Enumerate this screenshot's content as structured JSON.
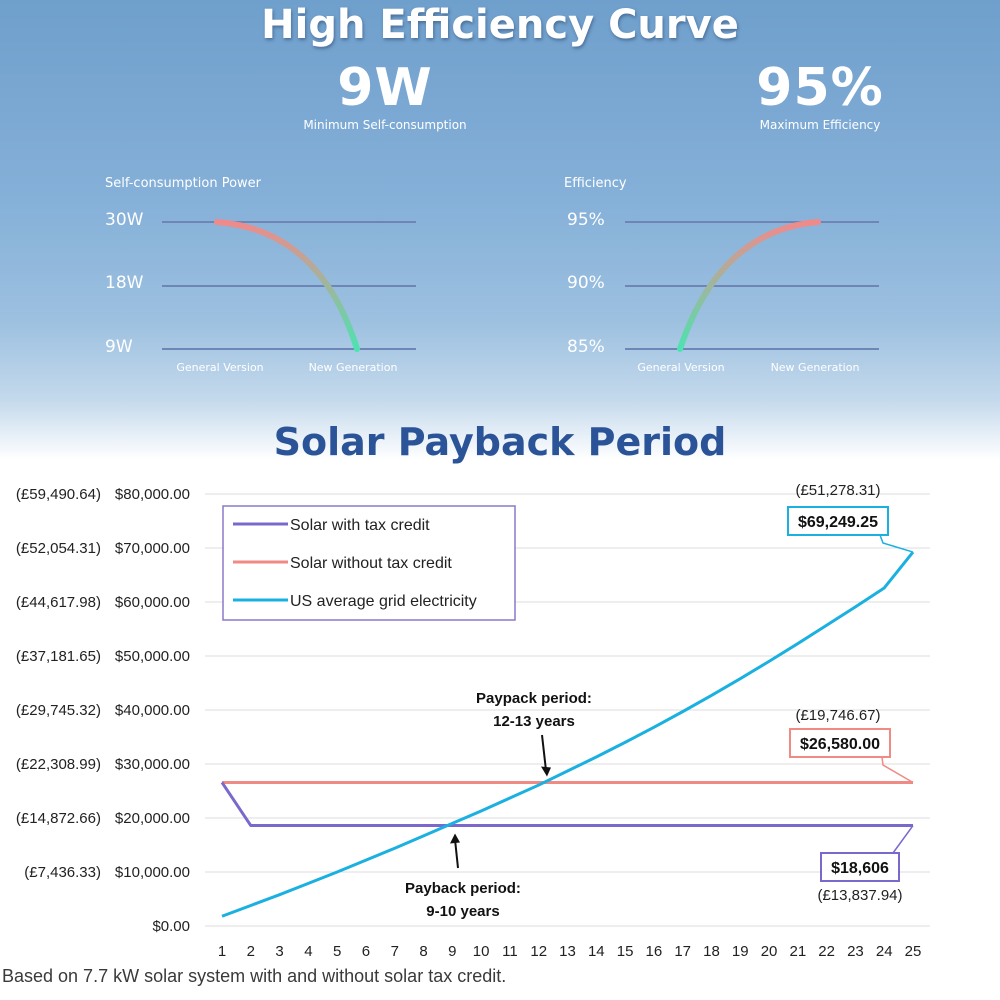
{
  "header": {
    "title": "High Efficiency Curve",
    "stat_left": {
      "value": "9W",
      "label": "Minimum Self-consumption"
    },
    "stat_right": {
      "value": "95%",
      "label": "Maximum Efficiency"
    }
  },
  "payback": {
    "title": "Solar Payback Period",
    "footnote": "Based on 7.7 kW solar system with and without solar tax credit."
  },
  "colors": {
    "solar_with": "#7b68cc",
    "solar_without": "#ef8a84",
    "grid": "#1ab0e0",
    "curve_hot": "#f08a8a",
    "curve_cool": "#4ee2b0"
  },
  "chart_data": [
    {
      "type": "line",
      "title": "Self-consumption Power",
      "y_ticks": [
        "30W",
        "18W",
        "9W"
      ],
      "x_labels": [
        "General Version",
        "New Generation"
      ],
      "series": [
        {
          "x": [
            "General Version",
            "New Generation"
          ],
          "y": [
            30,
            9
          ]
        }
      ]
    },
    {
      "type": "line",
      "title": "Efficiency",
      "y_ticks": [
        "95%",
        "90%",
        "85%"
      ],
      "x_labels": [
        "General Version",
        "New Generation"
      ],
      "series": [
        {
          "x": [
            "General Version",
            "New Generation"
          ],
          "y": [
            85,
            95
          ]
        }
      ]
    },
    {
      "type": "line",
      "x": [
        1,
        2,
        3,
        4,
        5,
        6,
        7,
        8,
        9,
        10,
        11,
        12,
        13,
        14,
        15,
        16,
        17,
        18,
        19,
        20,
        21,
        22,
        23,
        24,
        25
      ],
      "ylim": [
        0,
        80000
      ],
      "y_ticks": [
        "$0.00",
        "$10,000.00",
        "$20,000.00",
        "$30,000.00",
        "$40,000.00",
        "$50,000.00",
        "$60,000.00",
        "$70,000.00",
        "$80,000.00"
      ],
      "y_ticks_gbp": [
        "(£7,436.33)",
        "(£14,872.66)",
        "(£22,308.99)",
        "(£29,745.32)",
        "(£37,181.65)",
        "(£44,617.98)",
        "(£52,054.31)",
        "(£59,490.64)"
      ],
      "legend_position": "top-left",
      "series": [
        {
          "name": "Solar with tax credit",
          "values": [
            26580,
            18606,
            18606,
            18606,
            18606,
            18606,
            18606,
            18606,
            18606,
            18606,
            18606,
            18606,
            18606,
            18606,
            18606,
            18606,
            18606,
            18606,
            18606,
            18606,
            18606,
            18606,
            18606,
            18606,
            18606
          ]
        },
        {
          "name": "Solar without tax credit",
          "values": [
            26580,
            26580,
            26580,
            26580,
            26580,
            26580,
            26580,
            26580,
            26580,
            26580,
            26580,
            26580,
            26580,
            26580,
            26580,
            26580,
            26580,
            26580,
            26580,
            26580,
            26580,
            26580,
            26580,
            26580,
            26580
          ]
        },
        {
          "name": "US average grid electricity",
          "values": [
            1800,
            3800,
            5800,
            7900,
            10000,
            12200,
            14400,
            16700,
            19000,
            21300,
            23700,
            26100,
            28700,
            31300,
            34000,
            36800,
            39700,
            42700,
            45800,
            49000,
            52300,
            55700,
            59100,
            62600,
            69249.25
          ]
        }
      ],
      "annotations": [
        {
          "text": "$69,249.25",
          "gbp": "(£51,278.31)",
          "x": 25,
          "y": 69249.25
        },
        {
          "text": "$26,580.00",
          "gbp": "(£19,746.67)",
          "x": 25,
          "y": 26580
        },
        {
          "text": "$18,606",
          "gbp": "(£13,837.94)",
          "x": 25,
          "y": 18606
        },
        {
          "line1": "Paypack period:",
          "line2": "12-13 years",
          "x": 12.2,
          "y": 26580
        },
        {
          "line1": "Payback period:",
          "line2": "9-10 years",
          "x": 9,
          "y": 18606
        }
      ]
    }
  ]
}
